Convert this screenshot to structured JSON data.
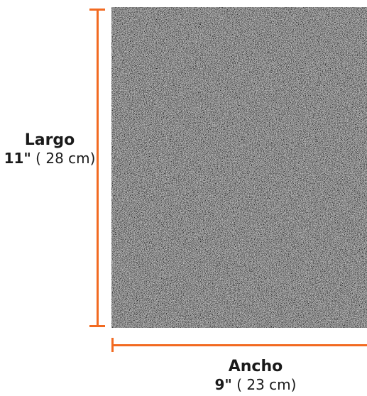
{
  "colors": {
    "accent": "#f26a21",
    "sheet": "#2b2b2b",
    "text": "#1a1a1a"
  },
  "product": {
    "texture": "sandpaper-grit"
  },
  "length": {
    "label": "Largo",
    "inches": "11\"",
    "metric": " ( 28 cm)"
  },
  "width": {
    "label": "Ancho",
    "inches": "9\"",
    "metric": " ( 23 cm)"
  }
}
